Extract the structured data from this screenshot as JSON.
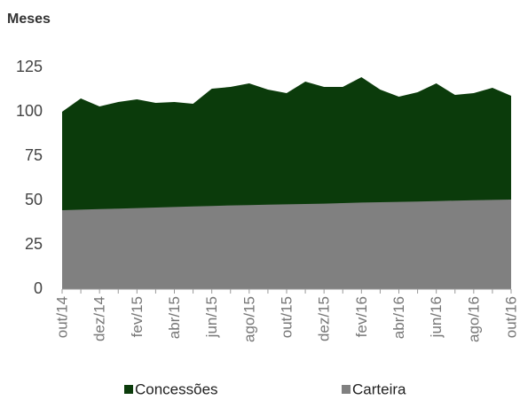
{
  "chart_data": {
    "type": "area",
    "title": "Meses",
    "categories": [
      "out/14",
      null,
      "dez/14",
      null,
      "fev/15",
      null,
      "abr/15",
      null,
      "jun/15",
      null,
      "ago/15",
      null,
      "out/15",
      null,
      "dez/15",
      null,
      "fev/16",
      null,
      "abr/16",
      null,
      "jun/16",
      null,
      "ago/16",
      null,
      "out/16"
    ],
    "series": [
      {
        "name": "Concessões",
        "color": "#0b3b0b",
        "values": [
          100,
          107.5,
          103,
          105.5,
          107,
          105,
          105.5,
          104.5,
          113,
          114,
          116,
          112.5,
          110.5,
          117,
          114,
          114,
          119.5,
          112.5,
          108.5,
          111,
          116,
          109.5,
          110.5,
          113.5,
          109
        ]
      },
      {
        "name": "Carteira",
        "color": "#808080",
        "values": [
          44.5,
          44.8,
          45.1,
          45.4,
          45.7,
          46,
          46.3,
          46.6,
          46.9,
          47.2,
          47.4,
          47.6,
          47.8,
          48,
          48.2,
          48.5,
          48.8,
          49,
          49.2,
          49.4,
          49.6,
          49.9,
          50.1,
          50.3,
          50.5
        ]
      }
    ],
    "ylim": [
      0,
      125
    ],
    "yticks": [
      0,
      25,
      50,
      75,
      100,
      125
    ],
    "grid": false,
    "legend": "bottom"
  }
}
